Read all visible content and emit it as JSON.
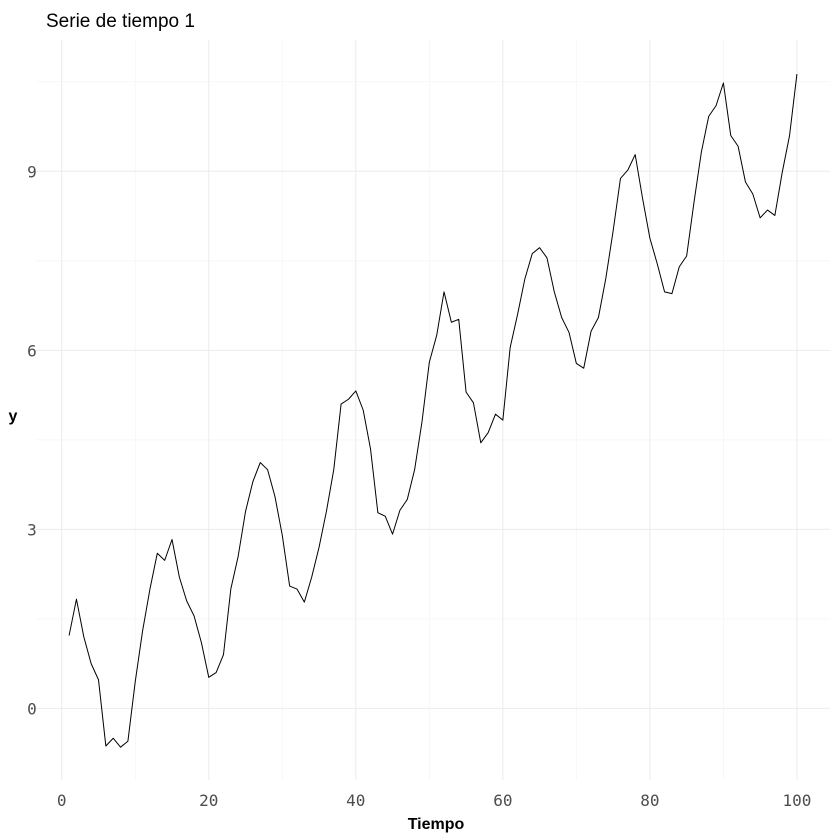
{
  "chart_data": {
    "type": "line",
    "title": "Serie de tiempo 1",
    "xlabel": "Tiempo",
    "ylabel": "y",
    "xlim": [
      -3.5,
      104.5
    ],
    "ylim": [
      -1.2,
      11.2
    ],
    "x_ticks": [
      0,
      20,
      40,
      60,
      80,
      100
    ],
    "y_ticks": [
      0,
      3,
      6,
      9
    ],
    "x_minor_ticks": [
      10,
      30,
      50,
      70,
      90
    ],
    "y_minor_ticks": [
      1.5,
      4.5,
      7.5,
      10.5
    ],
    "grid": true,
    "series": [
      {
        "color": "#000000",
        "x": [
          1,
          2,
          3,
          4,
          5,
          6,
          7,
          8,
          9,
          10,
          11,
          12,
          13,
          14,
          15,
          16,
          17,
          18,
          19,
          20,
          21,
          22,
          23,
          24,
          25,
          26,
          27,
          28,
          29,
          30,
          31,
          32,
          33,
          34,
          35,
          36,
          37,
          38,
          39,
          40,
          41,
          42,
          43,
          44,
          45,
          46,
          47,
          48,
          49,
          50,
          51,
          52,
          53,
          54,
          55,
          56,
          57,
          58,
          59,
          60,
          61,
          62,
          63,
          64,
          65,
          66,
          67,
          68,
          69,
          70,
          71,
          72,
          73,
          74,
          75,
          76,
          77,
          78,
          79,
          80,
          81,
          82,
          83,
          84,
          85,
          86,
          87,
          88,
          89,
          90,
          91,
          92,
          93,
          94,
          95,
          96,
          97,
          98,
          99,
          100
        ],
        "y": [
          1.22,
          1.83,
          1.2,
          0.75,
          0.48,
          -0.63,
          -0.5,
          -0.65,
          -0.55,
          0.45,
          1.3,
          2.0,
          2.6,
          2.48,
          2.83,
          2.2,
          1.8,
          1.55,
          1.1,
          0.52,
          0.6,
          0.9,
          2.0,
          2.55,
          3.3,
          3.8,
          4.12,
          4.0,
          3.55,
          2.9,
          2.05,
          2.0,
          1.78,
          2.2,
          2.7,
          3.3,
          4.0,
          5.1,
          5.18,
          5.32,
          5.0,
          4.35,
          3.28,
          3.22,
          2.92,
          3.32,
          3.5,
          4.0,
          4.8,
          5.8,
          6.25,
          6.98,
          6.47,
          6.52,
          5.3,
          5.12,
          4.45,
          4.62,
          4.93,
          4.83,
          6.05,
          6.6,
          7.2,
          7.62,
          7.72,
          7.55,
          6.98,
          6.55,
          6.3,
          5.78,
          5.7,
          6.32,
          6.55,
          7.2,
          8.0,
          8.88,
          9.02,
          9.28,
          8.55,
          7.88,
          7.45,
          6.98,
          6.95,
          7.4,
          7.58,
          8.48,
          9.32,
          9.92,
          10.1,
          10.48,
          9.6,
          9.42,
          8.82,
          8.62,
          8.22,
          8.35,
          8.26,
          8.98,
          9.6,
          10.63
        ]
      }
    ]
  }
}
